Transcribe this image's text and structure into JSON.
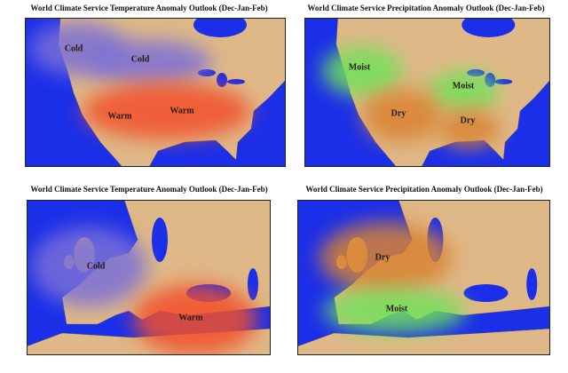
{
  "panels": [
    {
      "title": "World Climate Service Temperature Anomaly Outlook (Dec-Jan-Feb)",
      "labels": [
        "Cold",
        "Cold",
        "Warm",
        "Warm"
      ]
    },
    {
      "title": "World Climate Service Precipitation Anomaly Outlook (Dec-Jan-Feb)",
      "labels": [
        "Moist",
        "Moist",
        "Dry",
        "Dry"
      ]
    },
    {
      "title": "World Climate Service Temperature Anomaly Outlook (Dec-Jan-Feb)",
      "labels": [
        "Cold",
        "Warm"
      ]
    },
    {
      "title": "World Climate Service Precipitation Anomaly Outlook (Dec-Jan-Feb)",
      "labels": [
        "Dry",
        "Moist"
      ]
    }
  ]
}
